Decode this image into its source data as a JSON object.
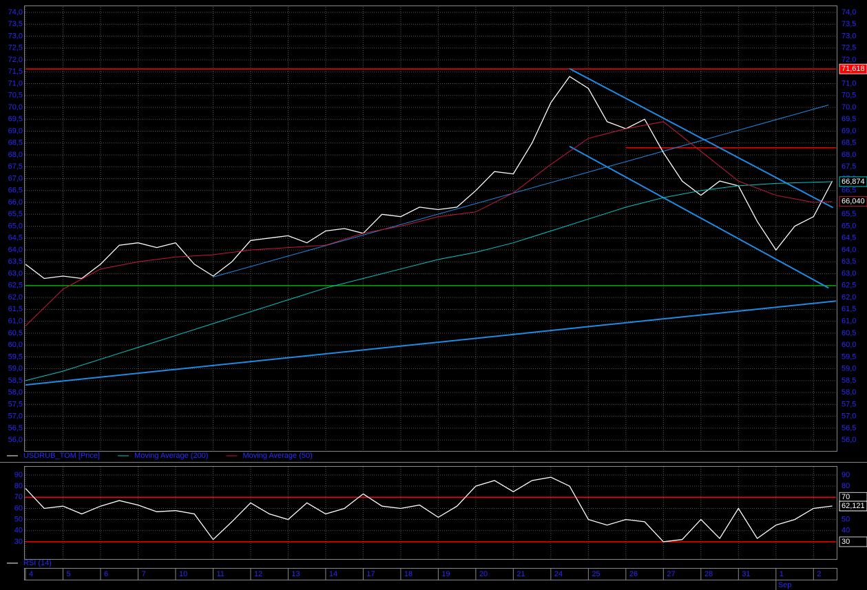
{
  "chart_data": [
    {
      "type": "line",
      "x": [
        0,
        0.5,
        1,
        1.5,
        2,
        2.5,
        3,
        3.5,
        4,
        4.5,
        5,
        5.5,
        6,
        6.5,
        7,
        7.5,
        8,
        8.5,
        9,
        9.5,
        10,
        10.5,
        11,
        11.5,
        12,
        12.5,
        13,
        13.5,
        14,
        14.5,
        15,
        15.5,
        16,
        16.5,
        17,
        17.5,
        18,
        18.5,
        19,
        19.5,
        20,
        20.5,
        21,
        21.5
      ],
      "xlim": [
        0,
        21.6
      ],
      "ylim": [
        55.57,
        74.23
      ],
      "yticks": [
        {
          "value": 74,
          "label": "74,0"
        },
        {
          "value": 73.5,
          "label": "73,5"
        },
        {
          "value": 73,
          "label": "73,0"
        },
        {
          "value": 72.5,
          "label": "72,5"
        },
        {
          "value": 72,
          "label": "72,0"
        },
        {
          "value": 71.5,
          "label": "71,5"
        },
        {
          "value": 71,
          "label": "71,0"
        },
        {
          "value": 70.5,
          "label": "70,5"
        },
        {
          "value": 70,
          "label": "70,0"
        },
        {
          "value": 69.5,
          "label": "69,5"
        },
        {
          "value": 69,
          "label": "69,0"
        },
        {
          "value": 68.5,
          "label": "68,5"
        },
        {
          "value": 68,
          "label": "68,0"
        },
        {
          "value": 67.5,
          "label": "67,5"
        },
        {
          "value": 67,
          "label": "67,0"
        },
        {
          "value": 66.5,
          "label": "66,5"
        },
        {
          "value": 66,
          "label": "66,0"
        },
        {
          "value": 65.5,
          "label": "65,5"
        },
        {
          "value": 65,
          "label": "65,0"
        },
        {
          "value": 64.5,
          "label": "64,5"
        },
        {
          "value": 64,
          "label": "64,0"
        },
        {
          "value": 63.5,
          "label": "63,5"
        },
        {
          "value": 63,
          "label": "63,0"
        },
        {
          "value": 62.5,
          "label": "62,5"
        },
        {
          "value": 62,
          "label": "62,0"
        },
        {
          "value": 61.5,
          "label": "61,5"
        },
        {
          "value": 61,
          "label": "61,0"
        },
        {
          "value": 60.5,
          "label": "60,5"
        },
        {
          "value": 60,
          "label": "60,0"
        },
        {
          "value": 59.5,
          "label": "59,5"
        },
        {
          "value": 59,
          "label": "59,0"
        },
        {
          "value": 58.5,
          "label": "58,5"
        },
        {
          "value": 58,
          "label": "58,0"
        },
        {
          "value": 57.5,
          "label": "57,5"
        },
        {
          "value": 57,
          "label": "57,0"
        },
        {
          "value": 56.5,
          "label": "56,5"
        },
        {
          "value": 56,
          "label": "56,0"
        }
      ],
      "grid": true,
      "series": [
        {
          "name": "USDRUB_TOM [Price]",
          "color": "#ffffff",
          "values": [
            63.4,
            62.8,
            62.9,
            62.8,
            63.4,
            64.2,
            64.3,
            64.1,
            64.3,
            63.4,
            62.9,
            63.5,
            64.4,
            64.5,
            64.6,
            64.3,
            64.8,
            64.9,
            64.7,
            65.5,
            65.4,
            65.8,
            65.7,
            65.8,
            66.5,
            67.3,
            67.2,
            68.5,
            70.2,
            71.3,
            70.8,
            69.4,
            69.1,
            69.5,
            68.1,
            66.9,
            66.3,
            66.9,
            66.7,
            65.2,
            64.0,
            65.0,
            65.4,
            66.9
          ]
        },
        {
          "name": "Moving Average (200)",
          "color": "#00c8c8",
          "x": [
            0,
            1,
            2,
            3,
            4,
            5,
            6,
            7,
            8,
            9,
            10,
            11,
            12,
            13,
            14,
            15,
            16,
            17,
            18,
            19,
            20,
            21,
            21.5
          ],
          "values": [
            58.5,
            58.9,
            59.4,
            59.9,
            60.4,
            60.9,
            61.4,
            61.9,
            62.4,
            62.8,
            63.2,
            63.6,
            63.9,
            64.3,
            64.8,
            65.3,
            65.8,
            66.2,
            66.5,
            66.7,
            66.8,
            66.85,
            66.874
          ],
          "last_value_label": "66,874"
        },
        {
          "name": "Moving Average (50)",
          "color": "#c8183c",
          "x": [
            0,
            1,
            2,
            3,
            4,
            5,
            6,
            7,
            8,
            9,
            10,
            11,
            12,
            13,
            14,
            15,
            16,
            17,
            18,
            19,
            20,
            21,
            21.5
          ],
          "values": [
            60.8,
            62.35,
            63.2,
            63.5,
            63.7,
            63.8,
            64.0,
            64.1,
            64.2,
            64.7,
            65.0,
            65.4,
            65.6,
            66.4,
            67.6,
            68.7,
            69.1,
            69.4,
            68.15,
            66.9,
            66.3,
            66.0,
            66.04
          ],
          "last_value_label": "66,040"
        }
      ],
      "levels": [
        {
          "value": 71.618,
          "label": "71,618",
          "color": "#ff0000",
          "x": [
            0,
            21.6
          ]
        },
        {
          "value": 62.5,
          "color": "#00b000",
          "x": [
            0,
            21.6
          ]
        },
        {
          "value": 68.3,
          "color": "#ff0000",
          "x": [
            16,
            21.6
          ]
        }
      ],
      "trendlines": [
        {
          "color": "#1e8ce6",
          "x": [
            0,
            21.6
          ],
          "values": [
            58.32,
            61.85
          ]
        },
        {
          "color": "#1e8ce6",
          "x": [
            14.5,
            21.52
          ],
          "values": [
            71.63,
            65.78
          ]
        },
        {
          "color": "#1e8ce6",
          "x": [
            14.5,
            21.4
          ],
          "values": [
            68.36,
            62.4
          ]
        },
        {
          "color": "#1e8ce6",
          "x": [
            5,
            21.4
          ],
          "values": [
            62.86,
            70.1
          ]
        }
      ]
    },
    {
      "type": "line",
      "ylim": [
        14.5,
        97.4
      ],
      "yticks": [
        30,
        40,
        50,
        60,
        70,
        80,
        90
      ],
      "grid": true,
      "xticks": [
        {
          "value": 0,
          "label": "4"
        },
        {
          "value": 1,
          "label": "5"
        },
        {
          "value": 2,
          "label": "6"
        },
        {
          "value": 3,
          "label": "7"
        },
        {
          "value": 4,
          "label": "10"
        },
        {
          "value": 5,
          "label": "11"
        },
        {
          "value": 6,
          "label": "12"
        },
        {
          "value": 7,
          "label": "13"
        },
        {
          "value": 8,
          "label": "14"
        },
        {
          "value": 9,
          "label": "17"
        },
        {
          "value": 10,
          "label": "18"
        },
        {
          "value": 11,
          "label": "19"
        },
        {
          "value": 12,
          "label": "20"
        },
        {
          "value": 13,
          "label": "21"
        },
        {
          "value": 14,
          "label": "24"
        },
        {
          "value": 15,
          "label": "25"
        },
        {
          "value": 16,
          "label": "26"
        },
        {
          "value": 17,
          "label": "27"
        },
        {
          "value": 18,
          "label": "28"
        },
        {
          "value": 19,
          "label": "31"
        },
        {
          "value": 20,
          "label": "1"
        },
        {
          "value": 21,
          "label": "2"
        }
      ],
      "month_label": {
        "value": 20,
        "label": "Sep"
      },
      "series": [
        {
          "name": "RSI (14)",
          "color": "#ffffff",
          "values": [
            78,
            60,
            62,
            55,
            62,
            67,
            63,
            57,
            58,
            55,
            32,
            48,
            65,
            55,
            50,
            65,
            55,
            60,
            73,
            62,
            60,
            63,
            52,
            62,
            80,
            85,
            75,
            85,
            88,
            80,
            50,
            45,
            50,
            48,
            30,
            32,
            50,
            33,
            60,
            33,
            45,
            50,
            60,
            62.121
          ],
          "last_value_label": "62,121"
        }
      ],
      "levels": [
        {
          "value": 70,
          "label": "70",
          "color": "#ff0000",
          "x": [
            0,
            21.6
          ]
        },
        {
          "value": 30,
          "label": "30",
          "color": "#ff0000",
          "x": [
            0,
            21.6
          ]
        }
      ]
    }
  ]
}
